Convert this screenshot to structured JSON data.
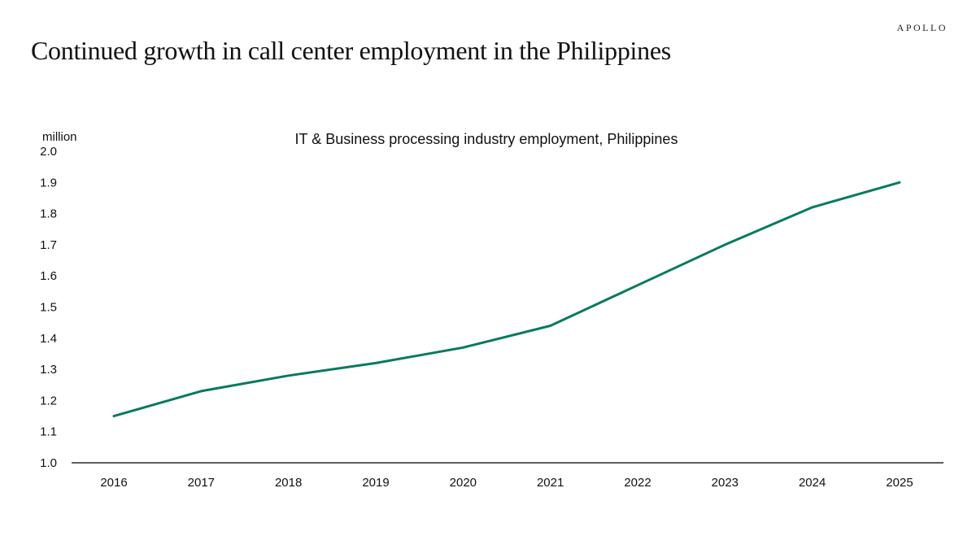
{
  "brand": "APOLLO",
  "page_title": "Continued growth in call center employment in the Philippines",
  "colors": {
    "line": "#077a5e",
    "axis": "#000000"
  },
  "chart_data": {
    "type": "line",
    "title": "IT & Business processing industry employment, Philippines",
    "ylabel": "million",
    "xlabel": "",
    "x": [
      "2016",
      "2017",
      "2018",
      "2019",
      "2020",
      "2021",
      "2022",
      "2023",
      "2024",
      "2025"
    ],
    "series": [
      {
        "values": [
          1.15,
          1.23,
          1.28,
          1.32,
          1.37,
          1.44,
          1.57,
          1.7,
          1.82,
          1.9
        ]
      }
    ],
    "ylim": [
      1.0,
      2.0
    ],
    "yticks": [
      "1.0",
      "1.1",
      "1.2",
      "1.3",
      "1.4",
      "1.5",
      "1.6",
      "1.7",
      "1.8",
      "1.9",
      "2.0"
    ],
    "grid": false,
    "legend": "none"
  }
}
